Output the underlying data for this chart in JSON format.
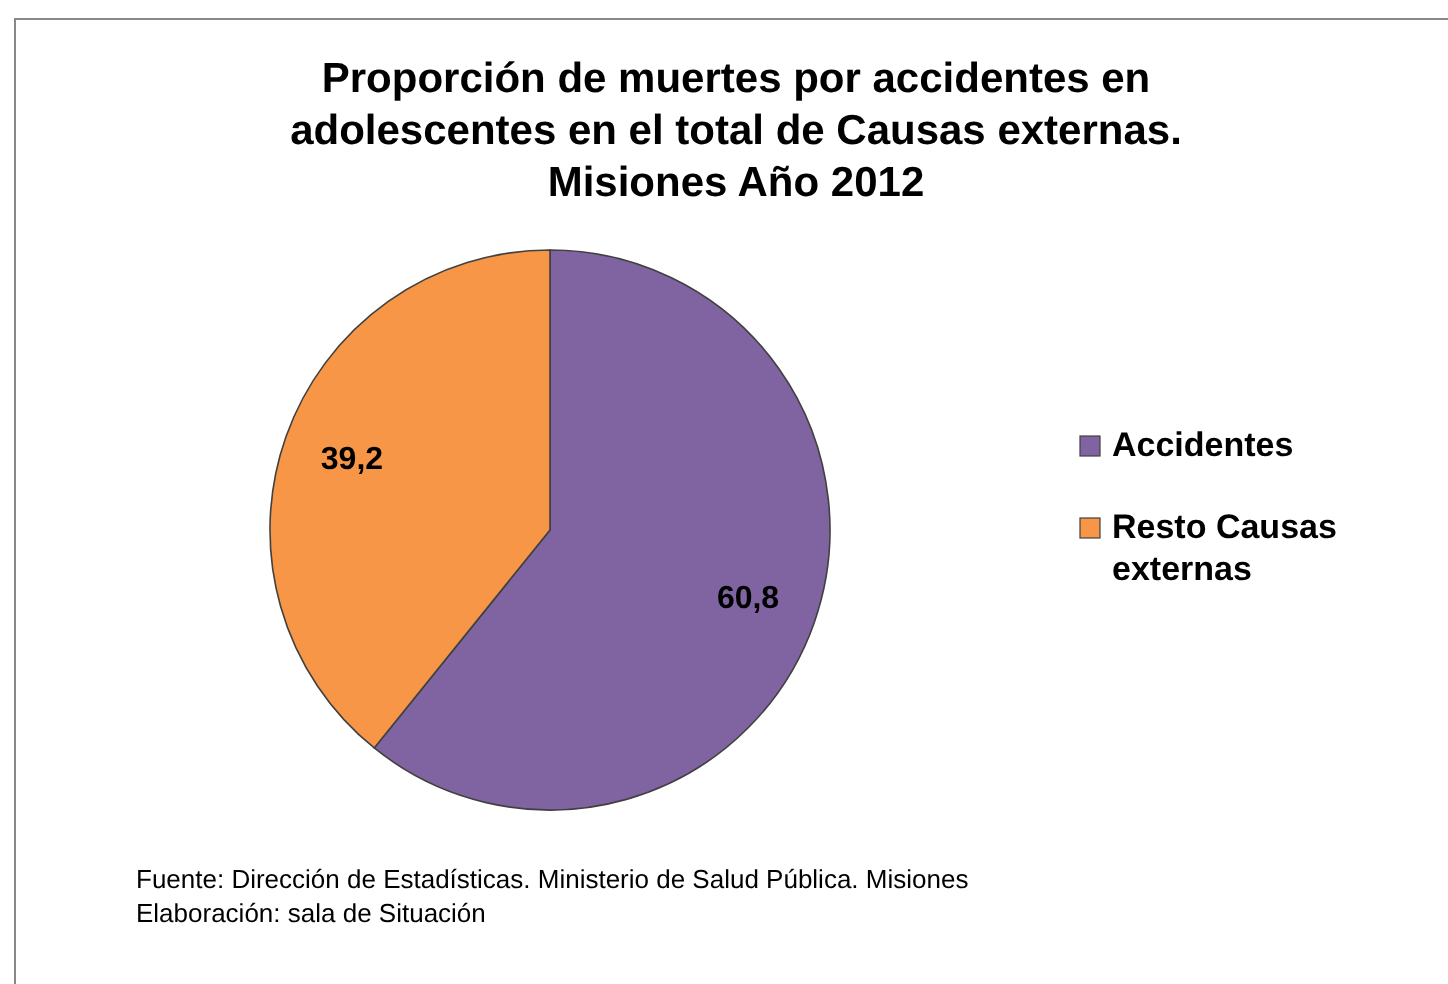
{
  "chart_data": {
    "type": "pie",
    "title": "Proporción de muertes por accidentes en\nadolescentes en el total de Causas externas.\nMisiones Año 2012",
    "categories": [
      "Accidentes",
      "Resto Causas externas"
    ],
    "values": [
      60.8,
      39.2
    ],
    "colors": [
      "#8064a2",
      "#f79646"
    ],
    "value_labels": [
      "60,8",
      "39,2"
    ],
    "legend": "right",
    "annotations": [
      "Fuente: Dirección de Estadísticas. Ministerio de Salud Pública. Misiones",
      "Elaboración: sala de Situación"
    ]
  }
}
